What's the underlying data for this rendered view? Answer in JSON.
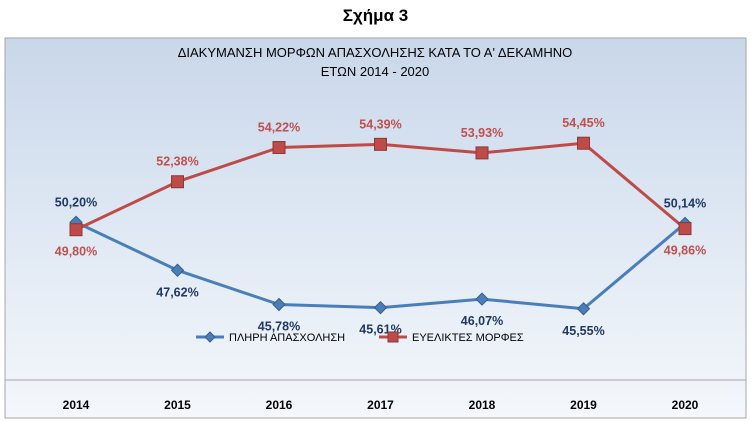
{
  "figure_label": "Σχήμα 3",
  "chart_data": {
    "type": "line",
    "title_line1": "ΔΙΑΚΥΜΑΝΣΗ ΜΟΡΦΩΝ ΑΠΑΣΧΟΛΗΣΗΣ ΚΑΤΑ ΤΟ Α' ΔΕΚΑΜΗΝΟ",
    "title_line2": "ΕΤΩΝ  2014 - 2020",
    "categories": [
      "2014",
      "2015",
      "2016",
      "2017",
      "2018",
      "2019",
      "2020"
    ],
    "ylim": [
      40,
      60
    ],
    "grid": false,
    "legend_position": "bottom",
    "series": [
      {
        "name": "ΠΛΗΡΗ ΑΠΑΣΧΟΛΗΣΗ",
        "values": [
          50.2,
          47.62,
          45.78,
          45.61,
          46.07,
          45.55,
          50.14
        ],
        "labels": [
          "50,20%",
          "47,62%",
          "45,78%",
          "45,61%",
          "46,07%",
          "45,55%",
          "50,14%"
        ],
        "color": "#4a7ebb",
        "label_color": "#1f3864",
        "marker": "diamond"
      },
      {
        "name": "ΕΥΕΛΙΚΤΕΣ ΜΟΡΦΕΣ",
        "values": [
          49.8,
          52.38,
          54.22,
          54.39,
          53.93,
          54.45,
          49.86
        ],
        "labels": [
          "49,80%",
          "52,38%",
          "54,22%",
          "54,39%",
          "53,93%",
          "54,45%",
          "49,86%"
        ],
        "color": "#be4b48",
        "label_color": "#c0504d",
        "marker": "square"
      }
    ],
    "plot_background": "#dbe5f1"
  }
}
